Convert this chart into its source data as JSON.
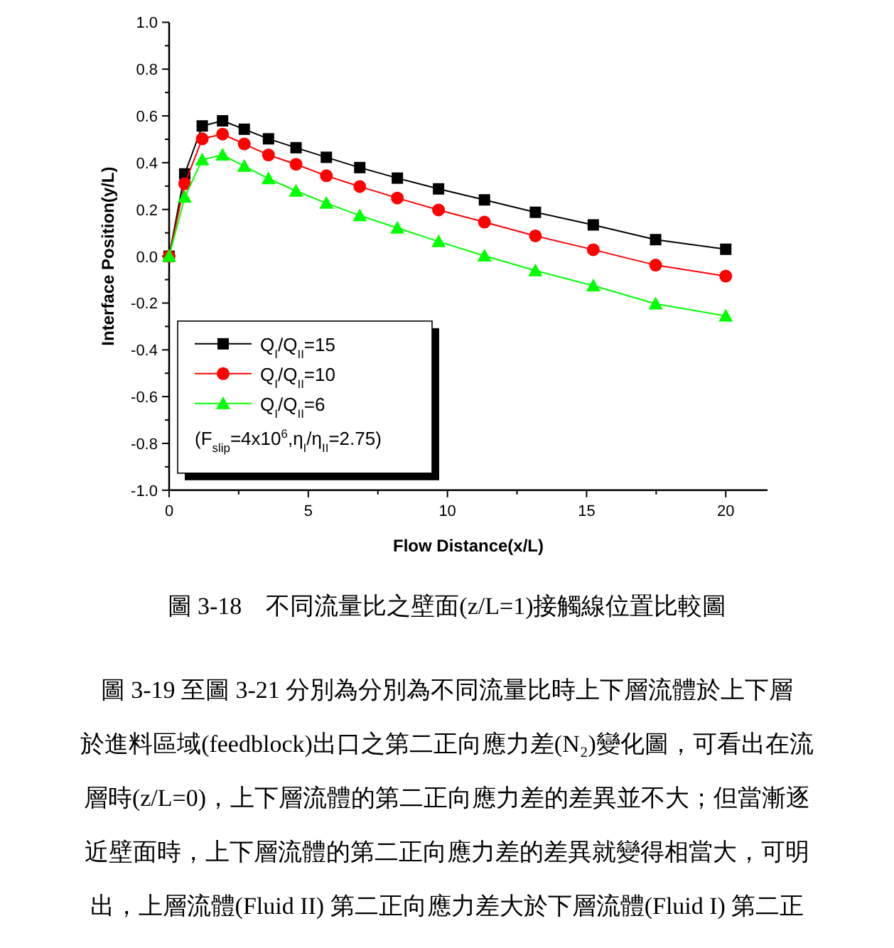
{
  "chart_data": {
    "type": "line",
    "xlabel": "Flow Distance(x/L)",
    "ylabel": "Interface Position(y/L)",
    "legend_title": "(F$_{slip}$=4x10$^{6}$,η$_{I}$/η$_{II}$=2.75)",
    "xlim": [
      0,
      21.5
    ],
    "ylim": [
      -1,
      1
    ],
    "xticks": [
      0,
      5,
      10,
      15,
      20
    ],
    "yticks": [
      {
        "value": -1,
        "label": "-1.0"
      },
      {
        "value": -0.8,
        "label": "-0.8"
      },
      {
        "value": -0.6,
        "label": "-0.6"
      },
      {
        "value": -0.4,
        "label": "-0.4"
      },
      {
        "value": -0.2,
        "label": "-0.2"
      },
      {
        "value": 0,
        "label": "0.0"
      },
      {
        "value": 0.2,
        "label": "0.2"
      },
      {
        "value": 0.4,
        "label": "0.4"
      },
      {
        "value": 0.6,
        "label": "0.6"
      },
      {
        "value": 0.8,
        "label": "0.8"
      },
      {
        "value": 1,
        "label": "1.0"
      }
    ],
    "x": [
      0,
      0.56,
      1.19,
      1.92,
      2.7,
      3.57,
      4.56,
      5.65,
      6.85,
      8.2,
      9.68,
      11.33,
      13.16,
      15.24,
      17.48,
      20
    ],
    "series": [
      {
        "name": "Q$_{I}$/Q$_{II}$=15",
        "color": "#000000",
        "marker": "square",
        "values": [
          0,
          0.352,
          0.557,
          0.579,
          0.543,
          0.502,
          0.464,
          0.423,
          0.379,
          0.334,
          0.288,
          0.241,
          0.188,
          0.134,
          0.071,
          0.03
        ]
      },
      {
        "name": "Q$_{I}$/Q$_{II}$=10",
        "color": "#ff0000",
        "marker": "circle",
        "values": [
          0,
          0.31,
          0.502,
          0.522,
          0.48,
          0.433,
          0.393,
          0.344,
          0.298,
          0.249,
          0.198,
          0.146,
          0.087,
          0.028,
          -0.038,
          -0.085
        ]
      },
      {
        "name": "Q$_{I}$/Q$_{II}$=6",
        "color": "#00ff00",
        "marker": "triangle",
        "values": [
          0,
          0.253,
          0.413,
          0.433,
          0.385,
          0.332,
          0.279,
          0.227,
          0.174,
          0.121,
          0.063,
          0.002,
          -0.061,
          -0.126,
          -0.203,
          -0.255
        ]
      }
    ],
    "legend": "bottom left",
    "grid": false,
    "line_style": "solid",
    "annotations": [
      "圖 3-18　不同流量比之壁面(z/L=1)接觸線位置比較圖",
      "圖 3-19 至圖 3-21 分別為分別為不同流量比時上下層流體於上下層",
      "於進料區域(feedblock)出口之第二正向應力差(N₂)變化圖，可看出在流",
      "層時(z/L=0)，上下層流體的第二正向應力差的差異並不大；但當漸逐",
      "近壁面時，上下層流體的第二正向應力差的差異就變得相當大，可明",
      "出，上層流體(Fluid II) 第二正向應力差大於下層流體(Fluid I) 第二正"
    ]
  }
}
